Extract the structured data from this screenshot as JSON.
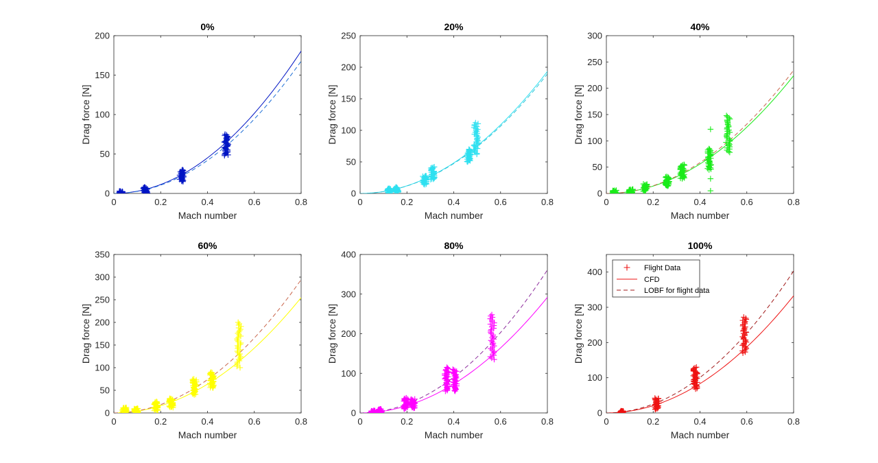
{
  "chart_data": [
    {
      "type": "scatter",
      "title": "0%",
      "xlabel": "Mach number",
      "ylabel": "Drag force [N]",
      "xlim": [
        0,
        0.8
      ],
      "ylim": [
        0,
        200
      ],
      "xticks": [
        "0",
        "0.2",
        "0.4",
        "0.6",
        "0.8"
      ],
      "yticks": [
        "0",
        "50",
        "100",
        "150",
        "200"
      ],
      "color": "#0015c4",
      "lobf_color": "#1f6fd6",
      "cfd_coef": 282,
      "lobf_coef": 262,
      "clusters": [
        {
          "x": 0.03,
          "y_min": -2,
          "y_max": 3
        },
        {
          "x": 0.135,
          "y_min": 0,
          "y_max": 8
        },
        {
          "x": 0.29,
          "y_min": 15,
          "y_max": 30
        },
        {
          "x": 0.48,
          "y_min": 48,
          "y_max": 75
        }
      ],
      "legend": null
    },
    {
      "type": "scatter",
      "title": "20%",
      "xlabel": "Mach number",
      "ylabel": "Drag force [N]",
      "xlim": [
        0,
        0.8
      ],
      "ylim": [
        0,
        250
      ],
      "xticks": [
        "0",
        "0.2",
        "0.4",
        "0.6",
        "0.8"
      ],
      "yticks": [
        "0",
        "50",
        "100",
        "150",
        "200",
        "250"
      ],
      "color": "#2ee0f0",
      "lobf_color": "#2ec2d6",
      "cfd_coef": 302,
      "lobf_coef": 296,
      "clusters": [
        {
          "x": 0.125,
          "y_min": 0,
          "y_max": 8
        },
        {
          "x": 0.155,
          "y_min": 2,
          "y_max": 10
        },
        {
          "x": 0.275,
          "y_min": 14,
          "y_max": 28
        },
        {
          "x": 0.31,
          "y_min": 22,
          "y_max": 42
        },
        {
          "x": 0.465,
          "y_min": 50,
          "y_max": 70
        },
        {
          "x": 0.495,
          "y_min": 62,
          "y_max": 112
        }
      ],
      "legend": null
    },
    {
      "type": "scatter",
      "title": "40%",
      "xlabel": "Mach number",
      "ylabel": "Drag force [N]",
      "xlim": [
        0,
        0.8
      ],
      "ylim": [
        0,
        300
      ],
      "xticks": [
        "0",
        "0.2",
        "0.4",
        "0.6",
        "0.8"
      ],
      "yticks": [
        "0",
        "50",
        "100",
        "150",
        "200",
        "250",
        "300"
      ],
      "color": "#1aeb1a",
      "lobf_color": "#c8644a",
      "cfd_coef": 350,
      "lobf_coef": 366,
      "clusters": [
        {
          "x": 0.035,
          "y_min": -2,
          "y_max": 6
        },
        {
          "x": 0.105,
          "y_min": 0,
          "y_max": 8
        },
        {
          "x": 0.165,
          "y_min": 4,
          "y_max": 18
        },
        {
          "x": 0.26,
          "y_min": 14,
          "y_max": 32
        },
        {
          "x": 0.325,
          "y_min": 28,
          "y_max": 55
        },
        {
          "x": 0.44,
          "y_min": 45,
          "y_max": 85
        },
        {
          "x": 0.52,
          "y_min": 78,
          "y_max": 148
        }
      ],
      "outliers": [
        {
          "x": 0.445,
          "y": 122
        },
        {
          "x": 0.445,
          "y": 28
        },
        {
          "x": 0.445,
          "y": 5
        }
      ],
      "legend": null
    },
    {
      "type": "scatter",
      "title": "60%",
      "xlabel": "Mach number",
      "ylabel": "Drag force [N]",
      "xlim": [
        0,
        0.8
      ],
      "ylim": [
        0,
        350
      ],
      "xticks": [
        "0",
        "0.2",
        "0.4",
        "0.6",
        "0.8"
      ],
      "yticks": [
        "0",
        "50",
        "100",
        "150",
        "200",
        "250",
        "300",
        "350"
      ],
      "color": "#ffff00",
      "lobf_color": "#c8644a",
      "cfd_coef": 398,
      "lobf_coef": 460,
      "clusters": [
        {
          "x": 0.045,
          "y_min": 0,
          "y_max": 12
        },
        {
          "x": 0.095,
          "y_min": 0,
          "y_max": 10
        },
        {
          "x": 0.18,
          "y_min": 5,
          "y_max": 25
        },
        {
          "x": 0.245,
          "y_min": 12,
          "y_max": 32
        },
        {
          "x": 0.345,
          "y_min": 40,
          "y_max": 75
        },
        {
          "x": 0.42,
          "y_min": 55,
          "y_max": 90
        },
        {
          "x": 0.535,
          "y_min": 100,
          "y_max": 200
        }
      ],
      "legend": null
    },
    {
      "type": "scatter",
      "title": "80%",
      "xlabel": "Mach number",
      "ylabel": "Drag force [N]",
      "xlim": [
        0,
        0.8
      ],
      "ylim": [
        0,
        400
      ],
      "xticks": [
        "0",
        "0.2",
        "0.4",
        "0.6",
        "0.8"
      ],
      "yticks": [
        "0",
        "100",
        "200",
        "300",
        "400"
      ],
      "color": "#ff00ff",
      "lobf_color": "#8c2a9c",
      "cfd_coef": 456,
      "lobf_coef": 564,
      "clusters": [
        {
          "x": 0.055,
          "y_min": -2,
          "y_max": 6
        },
        {
          "x": 0.085,
          "y_min": 0,
          "y_max": 10
        },
        {
          "x": 0.195,
          "y_min": 10,
          "y_max": 38
        },
        {
          "x": 0.225,
          "y_min": 12,
          "y_max": 35
        },
        {
          "x": 0.37,
          "y_min": 55,
          "y_max": 115
        },
        {
          "x": 0.405,
          "y_min": 55,
          "y_max": 110
        },
        {
          "x": 0.565,
          "y_min": 135,
          "y_max": 248
        }
      ],
      "legend": null
    },
    {
      "type": "scatter",
      "title": "100%",
      "xlabel": "Mach number",
      "ylabel": "Drag force [N]",
      "xlim": [
        0,
        0.8
      ],
      "ylim": [
        0,
        450
      ],
      "xticks": [
        "0",
        "0.2",
        "0.4",
        "0.6",
        "0.8"
      ],
      "yticks": [
        "0",
        "100",
        "200",
        "300",
        "400"
      ],
      "color": "#ee1111",
      "lobf_color": "#a01818",
      "cfd_coef": 520,
      "lobf_coef": 630,
      "clusters": [
        {
          "x": 0.065,
          "y_min": -2,
          "y_max": 6
        },
        {
          "x": 0.215,
          "y_min": 10,
          "y_max": 42
        },
        {
          "x": 0.38,
          "y_min": 68,
          "y_max": 130
        },
        {
          "x": 0.59,
          "y_min": 170,
          "y_max": 272
        }
      ],
      "legend": {
        "position": "top-left",
        "entries": [
          "Flight Data",
          "CFD",
          "LOBF for flight data"
        ]
      }
    }
  ]
}
